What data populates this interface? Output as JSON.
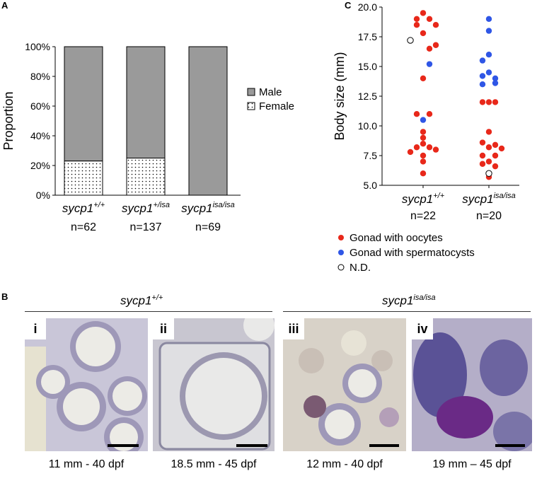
{
  "panels": {
    "a": "A",
    "b": "B",
    "c": "C"
  },
  "colors": {
    "male": "#9a9a9a",
    "oocytes": "#e8281a",
    "spermatocysts": "#2f56e6",
    "nd_fill": "#ffffff"
  },
  "chart_data": [
    {
      "type": "bar",
      "stacked": true,
      "ylabel": "Proportion",
      "yticks": [
        "0%",
        "20%",
        "40%",
        "60%",
        "80%",
        "100%"
      ],
      "ylim": [
        0,
        100
      ],
      "categories": [
        {
          "base": "sycp1",
          "sup": "+/+",
          "n": "n=62"
        },
        {
          "base": "sycp1",
          "sup": "+/isa",
          "n": "n=137"
        },
        {
          "base": "sycp1",
          "sup": "isa/isa",
          "n": "n=69"
        }
      ],
      "series": [
        {
          "name": "Female",
          "values": [
            23,
            25,
            0
          ]
        },
        {
          "name": "Male",
          "values": [
            77,
            75,
            100
          ]
        }
      ],
      "legend": [
        "Male",
        "Female"
      ],
      "legend_position": "right"
    },
    {
      "type": "scatter",
      "ylabel": "Body size (mm)",
      "ylim": [
        5.0,
        20.0
      ],
      "yticks": [
        "5.0",
        "7.5",
        "10.0",
        "12.5",
        "15.0",
        "17.5",
        "20.0"
      ],
      "categories": [
        {
          "base": "sycp1",
          "sup": "+/+",
          "n": "n=22"
        },
        {
          "base": "sycp1",
          "sup": "isa/isa",
          "n": "n=20"
        }
      ],
      "series": [
        {
          "name": "Gonad with oocytes",
          "points": [
            [
              0,
              19.5
            ],
            [
              -1,
              19.0
            ],
            [
              1,
              19.0
            ],
            [
              -1,
              18.5
            ],
            [
              2,
              18.5
            ],
            [
              0,
              17.8
            ],
            [
              2,
              16.8
            ],
            [
              1,
              16.5
            ],
            [
              0,
              14.0
            ],
            [
              -1,
              11.0
            ],
            [
              1,
              11.0
            ],
            [
              0,
              9.5
            ],
            [
              0,
              9.0
            ],
            [
              0,
              8.5
            ],
            [
              -1,
              8.2
            ],
            [
              1,
              8.2
            ],
            [
              2,
              8.0
            ],
            [
              -2,
              7.8
            ],
            [
              0,
              7.5
            ],
            [
              0,
              7.0
            ],
            [
              0,
              6.0
            ],
            [
              0,
              12.0
            ],
            [
              -1,
              12.0
            ],
            [
              1,
              12.0
            ],
            [
              0,
              9.5
            ],
            [
              -1,
              8.6
            ],
            [
              1,
              8.4
            ],
            [
              2,
              8.1
            ],
            [
              0,
              8.2
            ],
            [
              -1,
              7.5
            ],
            [
              1,
              7.5
            ],
            [
              0,
              7.0
            ],
            [
              -1,
              6.8
            ],
            [
              1,
              6.6
            ],
            [
              0,
              5.7
            ]
          ],
          "group": [
            0,
            0,
            0,
            0,
            0,
            0,
            0,
            0,
            0,
            0,
            0,
            0,
            0,
            0,
            0,
            0,
            0,
            0,
            0,
            0,
            0,
            1,
            1,
            1,
            1,
            1,
            1,
            1,
            1,
            1,
            1,
            1,
            1,
            1,
            1
          ]
        },
        {
          "name": "Gonad with spermatocysts",
          "points": [
            [
              1,
              15.2
            ],
            [
              0,
              10.5
            ],
            [
              0,
              19.0
            ],
            [
              0,
              18.0
            ],
            [
              0,
              16.0
            ],
            [
              -1,
              15.5
            ],
            [
              0,
              14.5
            ],
            [
              -1,
              14.2
            ],
            [
              1,
              14.0
            ],
            [
              -1,
              13.5
            ],
            [
              1,
              13.6
            ]
          ],
          "group": [
            0,
            0,
            1,
            1,
            1,
            1,
            1,
            1,
            1,
            1,
            1
          ]
        },
        {
          "name": "N.D.",
          "points": [
            [
              -2,
              17.2
            ],
            [
              0,
              6.0
            ]
          ],
          "group": [
            0,
            1
          ]
        }
      ],
      "legend_position": "bottom"
    }
  ],
  "panel_b": {
    "headers": [
      {
        "base": "sycp1",
        "sup": "+/+"
      },
      {
        "base": "sycp1",
        "sup": "isa/isa"
      }
    ],
    "images": [
      {
        "label": "i",
        "caption": "11 mm - 40 dpf",
        "tone": "light"
      },
      {
        "label": "ii",
        "caption": "18.5 mm - 45 dpf",
        "tone": "light"
      },
      {
        "label": "iii",
        "caption": "12 mm - 40 dpf",
        "tone": "light"
      },
      {
        "label": "iv",
        "caption": "19 mm – 45 dpf",
        "tone": "dark"
      }
    ]
  }
}
